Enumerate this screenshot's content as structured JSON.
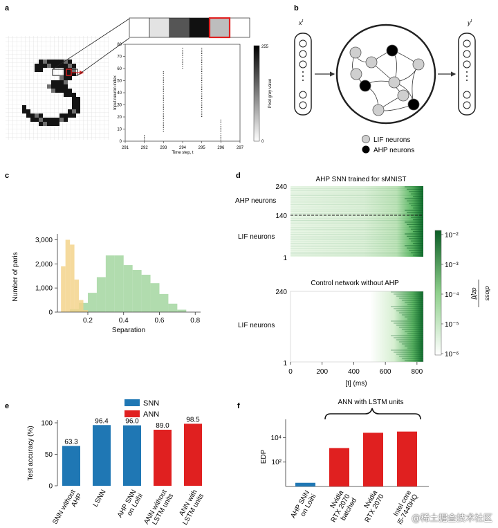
{
  "panels": {
    "a": "a",
    "b": "b",
    "c": "c",
    "d": "d",
    "e": "e",
    "f": "f"
  },
  "colors": {
    "snn_blue": "#1f77b4",
    "ann_red": "#e02020",
    "hist_yellow": "#f3d38c",
    "hist_green": "#9ed39a",
    "heat_green": "#1b7a37"
  },
  "panel_a": {
    "raster": {
      "xlabel": "Time step, t",
      "ylabel": "Input neuron index",
      "x_ticks": [
        "291",
        "292",
        "293",
        "294",
        "295",
        "296",
        "297"
      ],
      "y_ticks": [
        "0",
        "10",
        "20",
        "30",
        "40",
        "50",
        "60",
        "70",
        "80"
      ],
      "colorbar_label": "Pixel grey value",
      "colorbar_ticks": [
        "255",
        "0"
      ],
      "spikes": [
        {
          "t": 292,
          "y_from": 0,
          "y_to": 5
        },
        {
          "t": 293,
          "y_from": 8,
          "y_to": 58
        },
        {
          "t": 294,
          "y_from": 60,
          "y_to": 77
        },
        {
          "t": 295,
          "y_from": 20,
          "y_to": 77
        },
        {
          "t": 296,
          "y_from": 0,
          "y_to": 18
        }
      ],
      "strip_greys": [
        "#ffffff",
        "#e3e3e3",
        "#555555",
        "#111111",
        "#bdbdbd",
        "#ffffff"
      ],
      "highlight_index": 4
    }
  },
  "panel_b": {
    "input_label": "x",
    "input_sup": "t",
    "output_label": "y",
    "output_sup": "t",
    "legend": [
      {
        "label": "LIF neurons",
        "color": "#cfcfcf"
      },
      {
        "label": "AHP neurons",
        "color": "#000000"
      }
    ]
  },
  "panel_c": {
    "xlabel": "Separation",
    "ylabel": "Number of paris",
    "x_ticks": [
      "0.2",
      "0.4",
      "0.6",
      "0.8"
    ],
    "y_ticks": [
      "0",
      "1,000",
      "2,000",
      "3,000"
    ]
  },
  "panel_d": {
    "top_title": "AHP SNN trained for sMNIST",
    "bottom_title": "Control network without AHP",
    "top_yticks": [
      "240",
      "140",
      "1"
    ],
    "bottom_yticks": [
      "240",
      "1"
    ],
    "top_labels": [
      "AHP neurons",
      "LIF neurons"
    ],
    "bottom_label": "LIF neurons",
    "x_ticks": [
      "0",
      "200",
      "400",
      "600",
      "800"
    ],
    "xlabel": "[t] (ms)",
    "colorbar_ticks": [
      "10⁻²",
      "10⁻³",
      "10⁻⁴",
      "10⁻⁵",
      "10⁻⁶"
    ],
    "colorbar_label_num": "dloss",
    "colorbar_label_den": "dz[t]"
  },
  "panel_e": {
    "ylabel": "Test accuracy (%)",
    "y_ticks": [
      "0",
      "50",
      "100"
    ],
    "legend": [
      "SNN",
      "ANN"
    ]
  },
  "panel_f": {
    "ylabel": "EDP",
    "brace_label": "ANN with LSTM units",
    "y_ticks": [
      "10²",
      "10⁴"
    ]
  },
  "watermark": "@稀土掘金技术社区",
  "chart_data": [
    {
      "type": "scatter",
      "title": "",
      "xlabel": "Time step, t",
      "ylabel": "Input neuron index",
      "xlim": [
        291,
        297
      ],
      "ylim": [
        0,
        80
      ],
      "series": [
        {
          "x": [
            292,
            293,
            294,
            295,
            296
          ],
          "y_ranges": [
            [
              0,
              5
            ],
            [
              8,
              58
            ],
            [
              60,
              77
            ],
            [
              20,
              77
            ],
            [
              0,
              18
            ]
          ]
        }
      ]
    },
    {
      "type": "bar",
      "title": "",
      "xlabel": "Separation",
      "ylabel": "Number of paris",
      "xlim": [
        0.03,
        0.83
      ],
      "ylim": [
        0,
        3100
      ],
      "series": [
        {
          "bin_edges": [
            0.05,
            0.075,
            0.1,
            0.125,
            0.15,
            0.175,
            0.2
          ],
          "values": [
            1900,
            3000,
            2800,
            1350,
            500,
            80
          ]
        },
        {
          "bin_edges": [
            0.1,
            0.15,
            0.2,
            0.25,
            0.3,
            0.35,
            0.4,
            0.45,
            0.5,
            0.55,
            0.6,
            0.65,
            0.7,
            0.75
          ],
          "values": [
            120,
            380,
            800,
            1450,
            2350,
            2350,
            1950,
            1750,
            1550,
            1200,
            750,
            350,
            100
          ]
        }
      ]
    },
    {
      "type": "heatmap",
      "title": "AHP SNN trained for sMNIST",
      "xlabel": "[t] (ms)",
      "xlim": [
        0,
        840
      ],
      "ylim": [
        1,
        240
      ],
      "divider_row": 140,
      "color_range": [
        1e-06,
        0.01
      ]
    },
    {
      "type": "heatmap",
      "title": "Control network without AHP",
      "xlabel": "[t] (ms)",
      "xlim": [
        0,
        840
      ],
      "ylim": [
        1,
        240
      ],
      "color_range": [
        1e-06,
        0.01
      ]
    },
    {
      "type": "bar",
      "title": "",
      "xlabel": "",
      "ylabel": "Test accuracy (%)",
      "ylim": [
        0,
        100
      ],
      "categories": [
        "SNN without AHP",
        "LSNN",
        "AHP SNN on Loihi",
        "ANN without LSTM units",
        "ANN with LSTM units"
      ],
      "values": [
        63.3,
        96.4,
        96.0,
        89.0,
        98.5
      ],
      "value_labels": [
        "63.3",
        "96.4",
        "96.0",
        "89.0",
        "98.5"
      ],
      "groups": [
        "SNN",
        "SNN",
        "SNN",
        "ANN",
        "ANN"
      ]
    },
    {
      "type": "bar",
      "title": "",
      "xlabel": "",
      "ylabel": "EDP",
      "log_y": true,
      "ylim_log10": [
        0,
        5.5
      ],
      "categories": [
        "AHP SNN on Loihi",
        "Nvidia RTX 2070 batched",
        "Nvidia RTX 2070",
        "Intel core i5-7440HQ"
      ],
      "values_log10": [
        0.3,
        3.15,
        4.4,
        4.5
      ],
      "groups": [
        "SNN",
        "ANN",
        "ANN",
        "ANN"
      ]
    }
  ]
}
